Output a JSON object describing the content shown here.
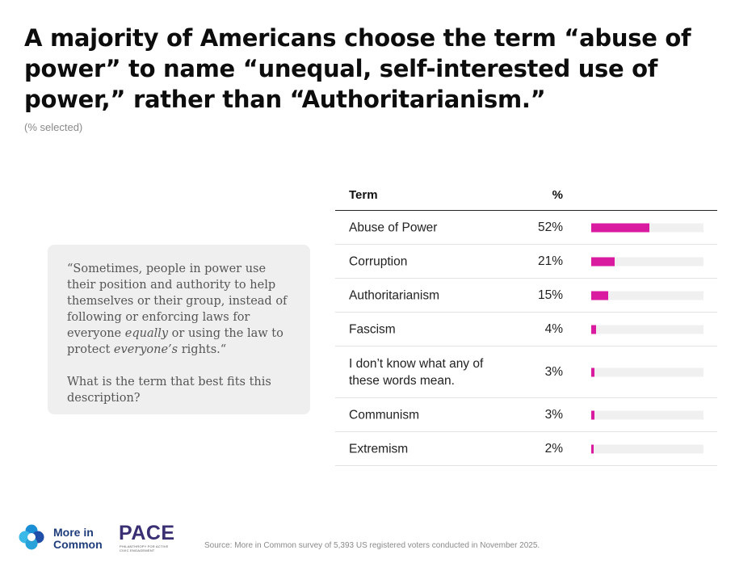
{
  "title": "A majority of Americans choose the term “abuse of power” to name “unequal, self-interested use of power,” rather than “Authoritarianism.”",
  "subtitle": "(% selected)",
  "quote": {
    "p1_a": "“Sometimes, people in power use their position and authority to help themselves or their group, instead of following or enforcing laws for everyone ",
    "p1_em1": "equally",
    "p1_b": " or using the law to protect ",
    "p1_em2": "everyone’s",
    "p1_c": " rights.“",
    "p2": "What is the term that best fits this description?"
  },
  "chart_data": {
    "type": "table",
    "columns": [
      "Term",
      "%"
    ],
    "bar_color": "#d81b9f",
    "track_color": "#f0f0f0",
    "scale_max": 100,
    "rows": [
      {
        "term": "Abuse of Power",
        "value": 52,
        "label": "52%"
      },
      {
        "term": "Corruption",
        "value": 21,
        "label": "21%"
      },
      {
        "term": "Authoritarianism",
        "value": 15,
        "label": "15%"
      },
      {
        "term": "Fascism",
        "value": 4,
        "label": "4%"
      },
      {
        "term": "I don’t know what any of these words mean.",
        "value": 3,
        "label": "3%"
      },
      {
        "term": "Communism",
        "value": 3,
        "label": "3%"
      },
      {
        "term": "Extremism",
        "value": 2,
        "label": "2%"
      }
    ]
  },
  "footer": {
    "brand1": "More in Common",
    "brand1_line1": "More in",
    "brand1_line2": "Common",
    "brand2": "PACE",
    "brand2_tagline": "PHILANTHROPY FOR ACTIVE CIVIC ENGAGEMENT",
    "source": "Source: More in Common survey of 5,393 US registered voters conducted in November 2025."
  }
}
